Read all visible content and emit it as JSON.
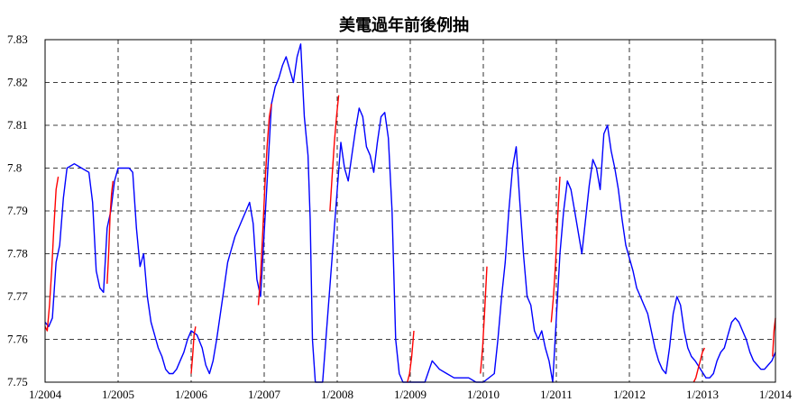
{
  "chart_data": {
    "type": "line",
    "title": "美電過年前後例抽",
    "xlabel": "",
    "ylabel": "",
    "x_ticks": [
      "1/2004",
      "1/2005",
      "1/2006",
      "1/2007",
      "1/2008",
      "1/2009",
      "1/2010",
      "1/2011",
      "1/2012",
      "1/2013",
      "1/2014"
    ],
    "y_ticks": [
      "7.75",
      "7.76",
      "7.77",
      "7.78",
      "7.79",
      "7.8",
      "7.81",
      "7.82",
      "7.83"
    ],
    "xlim": [
      2004.0,
      2014.0
    ],
    "ylim": [
      7.75,
      7.83
    ],
    "grid": true,
    "legend": "none",
    "colors": {
      "base": "#0000ff",
      "highlight": "#ff0000"
    },
    "series": [
      {
        "color": "#0000ff",
        "x": [
          2004.0,
          2004.05,
          2004.1,
          2004.15,
          2004.2,
          2004.25,
          2004.3,
          2004.4,
          2004.5,
          2004.6,
          2004.65,
          2004.7,
          2004.75,
          2004.8,
          2004.85,
          2004.9,
          2004.95,
          2005.0,
          2005.05,
          2005.15,
          2005.2,
          2005.25,
          2005.3,
          2005.35,
          2005.4,
          2005.45,
          2005.5,
          2005.55,
          2005.6,
          2005.65,
          2005.7,
          2005.75,
          2005.8,
          2005.85,
          2005.9,
          2005.95,
          2006.0,
          2006.08,
          2006.15,
          2006.2,
          2006.25,
          2006.3,
          2006.35,
          2006.4,
          2006.45,
          2006.5,
          2006.55,
          2006.6,
          2006.65,
          2006.7,
          2006.75,
          2006.8,
          2006.85,
          2006.9,
          2006.95,
          2007.1,
          2007.15,
          2007.2,
          2007.25,
          2007.3,
          2007.35,
          2007.4,
          2007.45,
          2007.5,
          2007.55,
          2007.6,
          2007.63,
          2007.66,
          2007.7,
          2007.75,
          2007.8,
          2008.05,
          2008.1,
          2008.15,
          2008.2,
          2008.25,
          2008.3,
          2008.35,
          2008.4,
          2008.45,
          2008.5,
          2008.55,
          2008.6,
          2008.65,
          2008.7,
          2008.75,
          2008.8,
          2008.85,
          2008.9,
          2008.95,
          2009.0,
          2009.1,
          2009.2,
          2009.3,
          2009.4,
          2009.5,
          2009.6,
          2009.7,
          2009.8,
          2009.9,
          2010.0,
          2010.15,
          2010.2,
          2010.25,
          2010.3,
          2010.35,
          2010.4,
          2010.45,
          2010.5,
          2010.55,
          2010.6,
          2010.65,
          2010.7,
          2010.75,
          2010.8,
          2010.85,
          2010.9,
          2010.95,
          2011.05,
          2011.1,
          2011.15,
          2011.2,
          2011.25,
          2011.3,
          2011.35,
          2011.4,
          2011.45,
          2011.5,
          2011.55,
          2011.6,
          2011.65,
          2011.7,
          2011.75,
          2011.8,
          2011.85,
          2011.9,
          2011.95,
          2012.0,
          2012.05,
          2012.1,
          2012.15,
          2012.2,
          2012.25,
          2012.3,
          2012.35,
          2012.4,
          2012.45,
          2012.5,
          2012.55,
          2012.6,
          2012.65,
          2012.7,
          2012.75,
          2012.8,
          2012.85,
          2012.9,
          2013.05,
          2013.1,
          2013.15,
          2013.2,
          2013.25,
          2013.3,
          2013.35,
          2013.4,
          2013.45,
          2013.5,
          2013.55,
          2013.6,
          2013.65,
          2013.7,
          2013.75,
          2013.8,
          2013.85,
          2013.9,
          2013.95,
          2014.0
        ],
        "y": [
          7.764,
          7.763,
          7.765,
          7.778,
          7.782,
          7.793,
          7.8,
          7.801,
          7.8,
          7.799,
          7.792,
          7.776,
          7.772,
          7.771,
          7.786,
          7.79,
          7.797,
          7.8,
          7.8,
          7.8,
          7.799,
          7.786,
          7.777,
          7.78,
          7.77,
          7.764,
          7.761,
          7.758,
          7.756,
          7.753,
          7.752,
          7.752,
          7.753,
          7.755,
          7.757,
          7.76,
          7.762,
          7.761,
          7.758,
          7.754,
          7.752,
          7.755,
          7.76,
          7.766,
          7.772,
          7.778,
          7.781,
          7.784,
          7.786,
          7.788,
          7.79,
          7.792,
          7.787,
          7.774,
          7.77,
          7.815,
          7.819,
          7.821,
          7.824,
          7.826,
          7.823,
          7.82,
          7.826,
          7.829,
          7.812,
          7.803,
          7.788,
          7.76,
          7.75,
          7.75,
          7.75,
          7.806,
          7.8,
          7.797,
          7.803,
          7.809,
          7.814,
          7.812,
          7.805,
          7.803,
          7.799,
          7.806,
          7.812,
          7.813,
          7.807,
          7.79,
          7.76,
          7.752,
          7.75,
          7.75,
          7.75,
          7.75,
          7.75,
          7.755,
          7.753,
          7.752,
          7.751,
          7.751,
          7.751,
          7.75,
          7.75,
          7.752,
          7.76,
          7.77,
          7.778,
          7.79,
          7.8,
          7.805,
          7.792,
          7.78,
          7.77,
          7.768,
          7.762,
          7.76,
          7.762,
          7.758,
          7.755,
          7.75,
          7.78,
          7.79,
          7.797,
          7.795,
          7.79,
          7.785,
          7.78,
          7.788,
          7.796,
          7.802,
          7.8,
          7.795,
          7.808,
          7.81,
          7.804,
          7.8,
          7.795,
          7.788,
          7.782,
          7.779,
          7.776,
          7.772,
          7.77,
          7.768,
          7.766,
          7.762,
          7.758,
          7.755,
          7.753,
          7.752,
          7.758,
          7.766,
          7.77,
          7.768,
          7.762,
          7.758,
          7.756,
          7.755,
          7.751,
          7.751,
          7.752,
          7.755,
          7.757,
          7.758,
          7.761,
          7.764,
          7.765,
          7.764,
          7.762,
          7.76,
          7.757,
          7.755,
          7.754,
          7.753,
          7.753,
          7.754,
          7.755,
          7.757
        ]
      },
      {
        "color": "#ff0000",
        "segments": [
          {
            "x": [
              2004.0,
              2004.03,
              2004.06,
              2004.09,
              2004.12,
              2004.15,
              2004.18
            ],
            "y": [
              7.763,
              7.762,
              7.768,
              7.776,
              7.786,
              7.795,
              7.798
            ]
          },
          {
            "x": [
              2004.85,
              2004.87,
              2004.89,
              2004.91,
              2004.93
            ],
            "y": [
              7.773,
              7.78,
              7.789,
              7.794,
              7.797
            ]
          },
          {
            "x": [
              2006.0,
              2006.02,
              2006.04,
              2006.06
            ],
            "y": [
              7.752,
              7.756,
              7.761,
              7.763
            ]
          },
          {
            "x": [
              2006.92,
              2006.95,
              2006.98,
              2007.01,
              2007.04,
              2007.07,
              2007.1
            ],
            "y": [
              7.768,
              7.775,
              7.785,
              7.796,
              7.805,
              7.812,
              7.815
            ]
          },
          {
            "x": [
              2007.9,
              2007.93,
              2007.96,
              2007.99,
              2008.02
            ],
            "y": [
              7.79,
              7.798,
              7.806,
              7.812,
              7.817
            ]
          },
          {
            "x": [
              2008.96,
              2008.99,
              2009.02,
              2009.05
            ],
            "y": [
              7.75,
              7.752,
              7.756,
              7.762
            ]
          },
          {
            "x": [
              2009.96,
              2009.99,
              2010.02,
              2010.05
            ],
            "y": [
              7.752,
              7.758,
              7.767,
              7.777
            ]
          },
          {
            "x": [
              2010.93,
              2010.96,
              2010.99,
              2011.02,
              2011.05
            ],
            "y": [
              7.764,
              7.77,
              7.778,
              7.789,
              7.798
            ]
          },
          {
            "x": [
              2012.88,
              2012.91,
              2012.94,
              2012.97,
              2013.0,
              2013.03
            ],
            "y": [
              7.75,
              7.751,
              7.753,
              7.755,
              7.757,
              7.758
            ]
          },
          {
            "x": [
              2013.96,
              2013.98,
              2014.0
            ],
            "y": [
              7.756,
              7.762,
              7.765
            ]
          }
        ]
      }
    ]
  }
}
